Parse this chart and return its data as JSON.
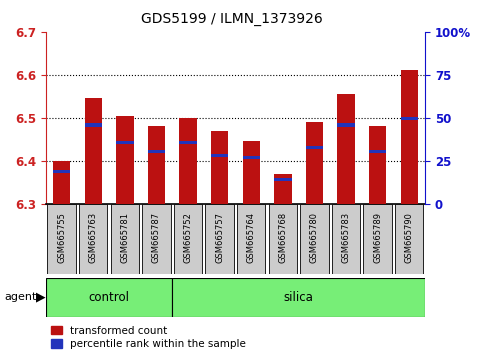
{
  "title": "GDS5199 / ILMN_1373926",
  "samples": [
    "GSM665755",
    "GSM665763",
    "GSM665781",
    "GSM665787",
    "GSM665752",
    "GSM665757",
    "GSM665764",
    "GSM665768",
    "GSM665780",
    "GSM665783",
    "GSM665789",
    "GSM665790"
  ],
  "groups": [
    "control",
    "control",
    "control",
    "control",
    "silica",
    "silica",
    "silica",
    "silica",
    "silica",
    "silica",
    "silica",
    "silica"
  ],
  "red_values": [
    6.4,
    6.545,
    6.505,
    6.48,
    6.5,
    6.468,
    6.445,
    6.368,
    6.49,
    6.555,
    6.48,
    6.61
  ],
  "blue_values": [
    6.375,
    6.483,
    6.443,
    6.422,
    6.442,
    6.413,
    6.408,
    6.355,
    6.43,
    6.483,
    6.422,
    6.498
  ],
  "y_min": 6.3,
  "y_max": 6.7,
  "y_ticks_left": [
    6.3,
    6.4,
    6.5,
    6.6,
    6.7
  ],
  "y_ticks_right_vals": [
    0,
    25,
    50,
    75,
    100
  ],
  "y_ticks_right_labels": [
    "0",
    "25",
    "50",
    "75",
    "100%"
  ],
  "bar_color": "#bb1111",
  "blue_color": "#2233bb",
  "control_color": "#77ee77",
  "silica_color": "#77ee77",
  "label_bg_color": "#cccccc",
  "bar_width": 0.55,
  "axis_color_left": "#cc2222",
  "axis_color_right": "#1111cc",
  "legend_red_label": "transformed count",
  "legend_blue_label": "percentile rank within the sample",
  "n_control": 4,
  "n_silica": 8
}
